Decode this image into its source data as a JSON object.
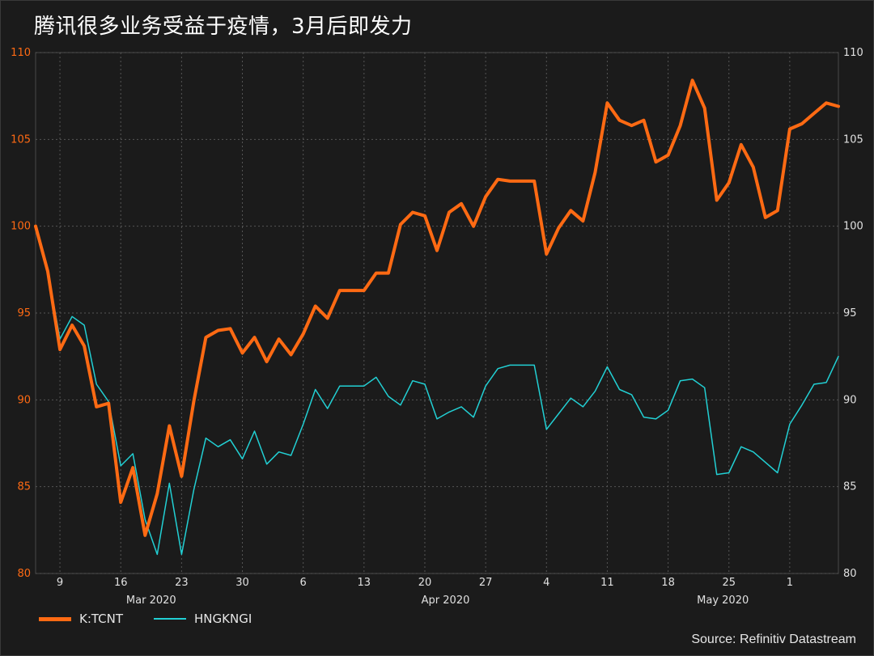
{
  "title": "腾讯很多业务受益于疫情，3月后即发力",
  "source": "Source: Refinitiv Datastream",
  "colors": {
    "tcnt": "#ff6a13",
    "hngkngi": "#22d0d4",
    "grid": "#555555",
    "background": "#1b1b1b"
  },
  "chart_data": {
    "type": "line",
    "title": "腾讯很多业务受益于疫情，3月后即发力",
    "ylim": [
      80,
      110
    ],
    "yticks": [
      80,
      85,
      90,
      95,
      100,
      105,
      110
    ],
    "grid": true,
    "legend_position": "bottom-left",
    "x_tick_labels": [
      "9",
      "16",
      "23",
      "30",
      "6",
      "13",
      "20",
      "27",
      "4",
      "11",
      "18",
      "25",
      "1"
    ],
    "month_labels": [
      "Mar 2020",
      "Apr 2020",
      "May 2020"
    ],
    "series": [
      {
        "name": "K:TCNT",
        "color": "#ff6a13",
        "values": [
          100.0,
          97.4,
          92.9,
          94.3,
          93.1,
          89.6,
          89.8,
          84.1,
          86.1,
          82.2,
          84.6,
          88.5,
          85.6,
          89.9,
          93.6,
          94.0,
          94.1,
          92.7,
          93.6,
          92.2,
          93.5,
          92.6,
          93.8,
          95.4,
          94.7,
          96.3,
          96.3,
          96.3,
          97.3,
          97.3,
          100.1,
          100.8,
          100.6,
          98.6,
          100.8,
          101.3,
          100.0,
          101.7,
          102.7,
          102.6,
          102.6,
          102.6,
          98.4,
          99.9,
          100.9,
          100.3,
          103.1,
          107.1,
          106.1,
          105.8,
          106.1,
          103.7,
          104.1,
          105.8,
          108.4,
          106.8,
          101.5,
          102.5,
          104.7,
          103.4,
          100.5,
          100.9,
          105.6,
          105.9,
          106.5,
          107.1,
          106.9
        ]
      },
      {
        "name": "HNGKNGI",
        "color": "#22d0d4",
        "values": [
          99.8,
          97.4,
          93.5,
          94.8,
          94.3,
          90.9,
          89.9,
          86.2,
          86.9,
          83.1,
          81.1,
          85.2,
          81.1,
          84.8,
          87.8,
          87.3,
          87.7,
          86.6,
          88.2,
          86.3,
          87.0,
          86.8,
          88.6,
          90.6,
          89.5,
          90.8,
          90.8,
          90.8,
          91.3,
          90.2,
          89.7,
          91.1,
          90.9,
          88.9,
          89.3,
          89.6,
          89.0,
          90.8,
          91.8,
          92.0,
          92.0,
          92.0,
          88.3,
          89.2,
          90.1,
          89.6,
          90.5,
          91.9,
          90.6,
          90.3,
          89.0,
          88.9,
          89.4,
          91.1,
          91.2,
          90.7,
          85.7,
          85.8,
          87.3,
          87.0,
          86.4,
          85.8,
          88.6,
          89.7,
          90.9,
          91.0,
          92.5
        ]
      }
    ]
  }
}
